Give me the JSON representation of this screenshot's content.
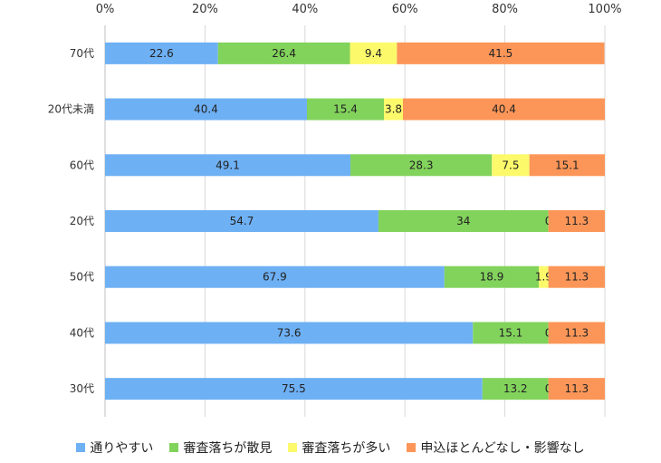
{
  "chart_data": {
    "type": "bar",
    "orientation": "horizontal",
    "stacked": true,
    "percent_scale": true,
    "x_ticks": [
      "0%",
      "20%",
      "40%",
      "60%",
      "80%",
      "100%"
    ],
    "xlim": [
      0,
      100
    ],
    "grid": true,
    "legend_position": "bottom",
    "categories": [
      "70代",
      "20代未満",
      "60代",
      "20代",
      "50代",
      "40代",
      "30代"
    ],
    "series": [
      {
        "name": "通りやすい",
        "color": "#6eb0f4",
        "values": [
          22.6,
          40.4,
          49.1,
          54.7,
          67.9,
          73.6,
          75.5
        ]
      },
      {
        "name": "審査落ちが散見",
        "color": "#82d35c",
        "values": [
          26.4,
          15.4,
          28.3,
          34,
          18.9,
          15.1,
          13.2
        ]
      },
      {
        "name": "審査落ちが多い",
        "color": "#fcf96b",
        "values": [
          9.4,
          3.8,
          7.5,
          0,
          1.9,
          0,
          0
        ]
      },
      {
        "name": "申込ほとんどなし・影響なし",
        "color": "#fc9658",
        "values": [
          41.5,
          40.4,
          15.1,
          11.3,
          11.3,
          11.3,
          11.3
        ]
      }
    ]
  }
}
